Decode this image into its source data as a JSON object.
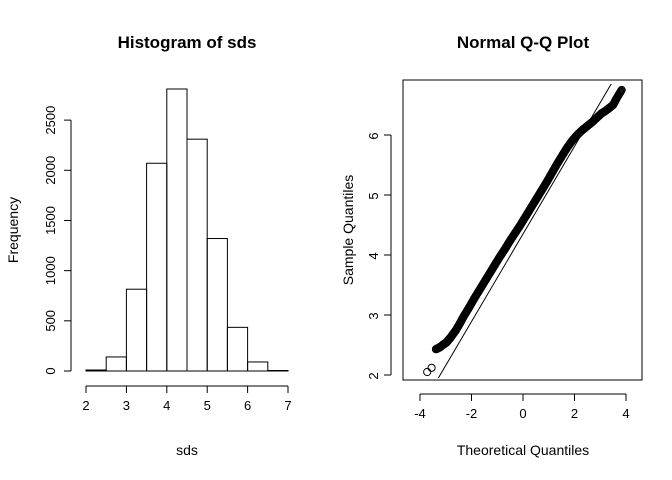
{
  "chart_data": [
    {
      "type": "bar",
      "title": "Histogram of sds",
      "xlabel": "sds",
      "ylabel": "Frequency",
      "bins": [
        {
          "from": 2.0,
          "to": 2.5,
          "count": 10
        },
        {
          "from": 2.5,
          "to": 3.0,
          "count": 140
        },
        {
          "from": 3.0,
          "to": 3.5,
          "count": 815
        },
        {
          "from": 3.5,
          "to": 4.0,
          "count": 2070
        },
        {
          "from": 4.0,
          "to": 4.5,
          "count": 2810
        },
        {
          "from": 4.5,
          "to": 5.0,
          "count": 2310
        },
        {
          "from": 5.0,
          "to": 5.5,
          "count": 1320
        },
        {
          "from": 5.5,
          "to": 6.0,
          "count": 435
        },
        {
          "from": 6.0,
          "to": 6.5,
          "count": 90
        },
        {
          "from": 6.5,
          "to": 7.0,
          "count": 5
        }
      ],
      "xlim": [
        2,
        7
      ],
      "ylim": [
        0,
        2810
      ],
      "xticks": [
        "2",
        "3",
        "4",
        "5",
        "6",
        "7"
      ],
      "yticks": [
        "0",
        "500",
        "1000",
        "1500",
        "2000",
        "2500"
      ],
      "grid": false
    },
    {
      "type": "scatter",
      "title": "Normal Q-Q Plot",
      "xlabel": "Theoretical Quantiles",
      "ylabel": "Sample Quantiles",
      "xlim": [
        -4,
        4
      ],
      "ylim": [
        1.95,
        6.85
      ],
      "xticks": [
        "-4",
        "-2",
        "0",
        "2",
        "4"
      ],
      "yticks": [
        "2",
        "3",
        "4",
        "5",
        "6"
      ],
      "reference_line": {
        "intercept": 4.35,
        "slope": 0.73
      },
      "points": [
        [
          -3.72,
          2.05
        ],
        [
          -3.55,
          2.12
        ],
        [
          -3.38,
          2.43
        ],
        [
          -3.28,
          2.45
        ],
        [
          -3.2,
          2.47
        ],
        [
          -3.12,
          2.5
        ],
        [
          -3.05,
          2.52
        ],
        [
          -2.98,
          2.54
        ],
        [
          -2.9,
          2.58
        ],
        [
          -2.82,
          2.62
        ],
        [
          -2.72,
          2.68
        ],
        [
          -2.6,
          2.75
        ],
        [
          -2.45,
          2.86
        ],
        [
          -2.3,
          2.98
        ],
        [
          -2.1,
          3.12
        ],
        [
          -1.9,
          3.27
        ],
        [
          -1.7,
          3.41
        ],
        [
          -1.5,
          3.55
        ],
        [
          -1.3,
          3.69
        ],
        [
          -1.1,
          3.83
        ],
        [
          -0.9,
          3.97
        ],
        [
          -0.7,
          4.1
        ],
        [
          -0.5,
          4.24
        ],
        [
          -0.3,
          4.37
        ],
        [
          -0.1,
          4.5
        ],
        [
          0.1,
          4.64
        ],
        [
          0.3,
          4.78
        ],
        [
          0.5,
          4.92
        ],
        [
          0.7,
          5.06
        ],
        [
          0.9,
          5.2
        ],
        [
          1.1,
          5.35
        ],
        [
          1.3,
          5.5
        ],
        [
          1.5,
          5.64
        ],
        [
          1.7,
          5.78
        ],
        [
          1.9,
          5.9
        ],
        [
          2.1,
          6.0
        ],
        [
          2.3,
          6.08
        ],
        [
          2.5,
          6.15
        ],
        [
          2.7,
          6.22
        ],
        [
          2.9,
          6.3
        ],
        [
          3.05,
          6.36
        ],
        [
          3.2,
          6.4
        ],
        [
          3.35,
          6.45
        ],
        [
          3.5,
          6.5
        ],
        [
          3.62,
          6.6
        ],
        [
          3.83,
          6.75
        ]
      ],
      "grid": false
    }
  ]
}
